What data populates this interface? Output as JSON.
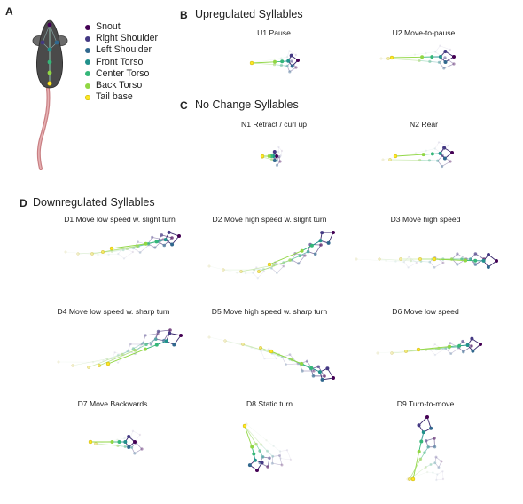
{
  "panels": {
    "a": {
      "letter": "A"
    },
    "b": {
      "letter": "B",
      "title": "Upregulated Syllables"
    },
    "c": {
      "letter": "C",
      "title": "No Change Syllables"
    },
    "d": {
      "letter": "D",
      "title": "Downregulated Syllables"
    }
  },
  "legend": [
    {
      "label": "Snout",
      "color": "#440154"
    },
    {
      "label": "Right Shoulder",
      "color": "#443983"
    },
    {
      "label": "Left Shoulder",
      "color": "#31688e"
    },
    {
      "label": "Front Torso",
      "color": "#21918c"
    },
    {
      "label": "Center Torso",
      "color": "#35b779"
    },
    {
      "label": "Back Torso",
      "color": "#90d743"
    },
    {
      "label": "Tail base",
      "color": "#fde725"
    }
  ],
  "syllables": {
    "u1": "U1 Pause",
    "u2": "U2 Move-to-pause",
    "n1": "N1 Retract / curl up",
    "n2": "N2 Rear",
    "d1": "D1 Move low speed w. slight turn",
    "d2": "D2 Move high speed w. slight turn",
    "d3": "D3 Move high speed",
    "d4": "D4 Move low speed w. sharp turn",
    "d5": "D5 Move high speed w. sharp turn",
    "d6": "D6 Move low speed",
    "d7": "D7 Move Backwards",
    "d8": "D8 Static turn",
    "d9": "D9 Turn-to-move"
  }
}
